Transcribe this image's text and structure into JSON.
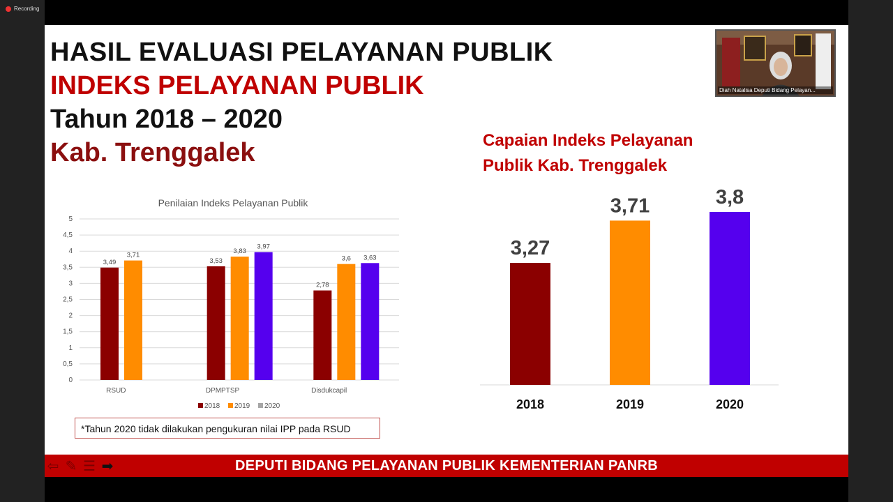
{
  "recording": {
    "label": "Recording"
  },
  "slide": {
    "title_line1": "HASIL EVALUASI PELAYANAN PUBLIK",
    "title_line2": "INDEKS PELAYANAN PUBLIK",
    "title_line3": "Tahun 2018 – 2020",
    "title_line4": "Kab. Trenggalek",
    "right_title_line1": "Capaian Indeks Pelayanan",
    "right_title_line2": "Publik Kab. Trenggalek",
    "note": "*Tahun 2020 tidak dilakukan pengukuran nilai IPP pada RSUD",
    "footer": "DEPUTI BIDANG PELAYANAN PUBLIK KEMENTERIAN PANRB"
  },
  "webcam": {
    "name": "Diah Natalisa Deputi Bidang Pelayan..."
  },
  "colors": {
    "y2018": "#8b0000",
    "y2019": "#ff8c00",
    "y2020": "#5500ee",
    "accent": "#c00000"
  },
  "chart_data": [
    {
      "type": "bar",
      "title": "Penilaian Indeks Pelayanan Publik",
      "categories": [
        "RSUD",
        "DPMPTSP",
        "Disdukcapil"
      ],
      "series": [
        {
          "name": "2018",
          "values": [
            3.49,
            3.53,
            2.78
          ],
          "labels": [
            "3,49",
            "3,53",
            "2,78"
          ]
        },
        {
          "name": "2019",
          "values": [
            3.71,
            3.83,
            3.6
          ],
          "labels": [
            "3,71",
            "3,83",
            "3,6"
          ]
        },
        {
          "name": "2020",
          "values": [
            null,
            3.97,
            3.63
          ],
          "labels": [
            "",
            "3,97",
            "3,63"
          ]
        }
      ],
      "ylim": [
        0,
        5
      ],
      "yticks": [
        "0",
        "0,5",
        "1",
        "1,5",
        "2",
        "2,5",
        "3",
        "3,5",
        "4",
        "4,5",
        "5"
      ],
      "grid": true,
      "legend": "bottom"
    },
    {
      "type": "bar",
      "title": "Capaian Indeks Pelayanan Publik Kab. Trenggalek",
      "categories": [
        "2018",
        "2019",
        "2020"
      ],
      "values": [
        3.27,
        3.71,
        3.8
      ],
      "labels": [
        "3,27",
        "3,71",
        "3,8"
      ]
    }
  ]
}
